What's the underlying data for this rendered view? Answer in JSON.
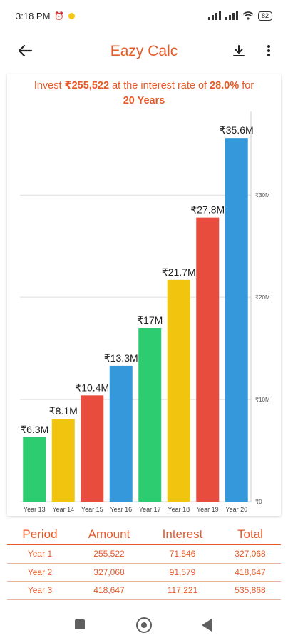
{
  "status_bar": {
    "time": "3:18 PM",
    "alarm_icon": "⏰",
    "signal_text": "📶 📶",
    "battery": "82"
  },
  "app_bar": {
    "title": "Eazy Calc",
    "back_icon": "arrow-left",
    "download_icon": "download",
    "more_icon": "more-vertical"
  },
  "summary": {
    "prefix": "Invest ",
    "amount": "₹255,522",
    "middle": " at the interest rate of ",
    "rate": "28.0%",
    "for_text": " for",
    "years": "20 Years"
  },
  "chart_data": {
    "type": "bar",
    "categories": [
      "Year 13",
      "Year 14",
      "Year 15",
      "Year 16",
      "Year 17",
      "Year 18",
      "Year 19",
      "Year 20"
    ],
    "values": [
      6.3,
      8.1,
      10.4,
      13.3,
      17.0,
      21.7,
      27.8,
      35.6
    ],
    "data_labels": [
      "₹6.3M",
      "₹8.1M",
      "₹10.4M",
      "₹13.3M",
      "₹17M",
      "₹21.7M",
      "₹27.8M",
      "₹35.6M"
    ],
    "bar_colors": [
      "#2ecc71",
      "#f1c40f",
      "#e74c3c",
      "#3498db",
      "#2ecc71",
      "#f1c40f",
      "#e74c3c",
      "#3498db"
    ],
    "y_ticks": [
      {
        "value": 0,
        "label": "₹0"
      },
      {
        "value": 10,
        "label": "₹10M"
      },
      {
        "value": 20,
        "label": "₹20M"
      },
      {
        "value": 30,
        "label": "₹30M"
      }
    ],
    "ylim": [
      0,
      37.5
    ],
    "y_axis_side": "right",
    "grid": true
  },
  "table": {
    "headers": [
      "Period",
      "Amount",
      "Interest",
      "Total"
    ],
    "rows": [
      [
        "Year 1",
        "255,522",
        "71,546",
        "327,068"
      ],
      [
        "Year 2",
        "327,068",
        "91,579",
        "418,647"
      ],
      [
        "Year 3",
        "418,647",
        "117,221",
        "535,868"
      ]
    ]
  },
  "colors": {
    "accent": "#e55a28",
    "nav_icon": "#5f5f5f"
  }
}
